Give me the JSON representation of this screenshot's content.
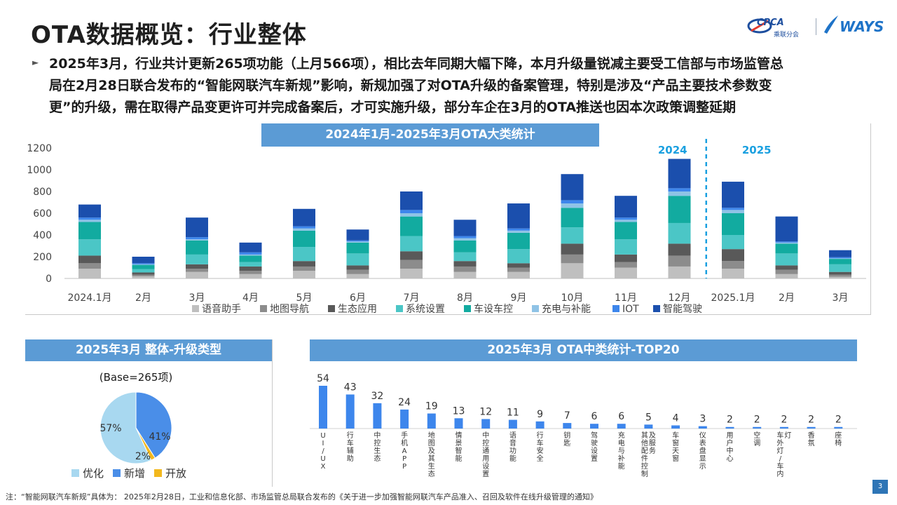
{
  "title": "OTA数据概览：行业整体",
  "logos": {
    "cpca": "CPCA",
    "cpca_sub": "乘联分会",
    "ways": "WAYS"
  },
  "summary_lines": [
    "2025年3月，行业共计更新265项功能（上月566项），相比去年同期大幅下降，本月升级量锐减主要受工信部与市场监管总",
    "局在2月28日联合发布的“智能网联汽车新规”影响，新规加强了对OTA升级的备案管理，特别是涉及“产品主要技术参数变",
    "更”的升级，需在取得产品变更许可并完成备案后，才可实施升级，部分车企在3月的OTA推送也因本次政策调整延期"
  ],
  "footnote": "注：“智能网联汽车新规”具体为：  2025年2月28日，工业和信息化部、市场监管总局联合发布的《关于进一步加强智能网联汽车产品准入、召回及软件在线升级管理的通知》",
  "page_number": "3",
  "colors": {
    "banner": "#5b9bd5",
    "series": [
      "#bfbfbf",
      "#8c8c8c",
      "#595959",
      "#4bc6c6",
      "#12aba0",
      "#8fc3e6",
      "#3d86ec",
      "#1b4fad"
    ],
    "pie": [
      "#a8d8f0",
      "#4a8ee8",
      "#f2b81e"
    ],
    "top20_bar": "#3d86ec",
    "divider": "#1aa0e0"
  },
  "chart_data": [
    {
      "type": "bar",
      "stacked": true,
      "title": "2024年1月-2025年3月OTA大类统计",
      "categories": [
        "2024.1月",
        "2月",
        "3月",
        "4月",
        "5月",
        "6月",
        "7月",
        "8月",
        "9月",
        "10月",
        "11月",
        "12月",
        "2025.1月",
        "2月",
        "3月"
      ],
      "ylim": [
        0,
        1200
      ],
      "yticks": [
        0,
        200,
        400,
        600,
        800,
        1000,
        1200
      ],
      "grid": false,
      "legend": "bottom",
      "year_labels": [
        "2024",
        "2025"
      ],
      "series": [
        {
          "name": "语音助手",
          "values": [
            90,
            20,
            60,
            40,
            70,
            40,
            90,
            60,
            60,
            140,
            100,
            110,
            90,
            40,
            15
          ]
        },
        {
          "name": "地图导航",
          "values": [
            50,
            15,
            30,
            30,
            40,
            40,
            80,
            50,
            40,
            80,
            50,
            100,
            70,
            40,
            20
          ]
        },
        {
          "name": "生态应用",
          "values": [
            70,
            20,
            40,
            40,
            50,
            40,
            80,
            50,
            40,
            100,
            70,
            110,
            110,
            40,
            25
          ]
        },
        {
          "name": "系统设置",
          "values": [
            150,
            30,
            90,
            40,
            130,
            110,
            140,
            80,
            130,
            150,
            140,
            190,
            130,
            110,
            70
          ]
        },
        {
          "name": "车设车控",
          "values": [
            160,
            40,
            130,
            60,
            150,
            100,
            180,
            110,
            150,
            180,
            160,
            250,
            200,
            90,
            50
          ]
        },
        {
          "name": "充电与补能",
          "values": [
            20,
            5,
            10,
            10,
            20,
            10,
            30,
            20,
            20,
            40,
            20,
            40,
            30,
            10,
            5
          ]
        },
        {
          "name": "IOT",
          "values": [
            20,
            10,
            20,
            20,
            20,
            10,
            30,
            20,
            20,
            30,
            20,
            30,
            20,
            10,
            10
          ]
        },
        {
          "name": "智能驾驶",
          "values": [
            120,
            60,
            180,
            90,
            160,
            100,
            170,
            150,
            230,
            240,
            200,
            270,
            240,
            230,
            65
          ]
        }
      ]
    },
    {
      "type": "pie",
      "title": "2025年3月 整体-升级类型",
      "subtitle": "(Base=265项)",
      "slices": [
        {
          "name": "优化",
          "value": 57,
          "label": "57%"
        },
        {
          "name": "新增",
          "value": 41,
          "label": "41%"
        },
        {
          "name": "开放",
          "value": 2,
          "label": "2%"
        }
      ],
      "legend": "bottom"
    },
    {
      "type": "bar",
      "title": "2025年3月 OTA中类统计-TOP20",
      "categories": [
        "UI/UX",
        "行车辅助",
        "中控生态",
        "手机APP",
        "地图及其生态",
        "情景智能",
        "中控通用设置",
        "语音功能",
        "行车安全",
        "钥匙",
        "驾驶设置",
        "充电与补能",
        "其他配件控制及服务",
        "车窗天窗",
        "仪表盘显示",
        "用户中心",
        "空调",
        "车外灯/车内灯",
        "香氛",
        "座椅"
      ],
      "values": [
        54,
        43,
        32,
        24,
        19,
        13,
        12,
        11,
        9,
        7,
        6,
        6,
        5,
        4,
        3,
        2,
        2,
        2,
        2,
        2
      ],
      "ylim": [
        0,
        60
      ],
      "grid": false
    }
  ]
}
